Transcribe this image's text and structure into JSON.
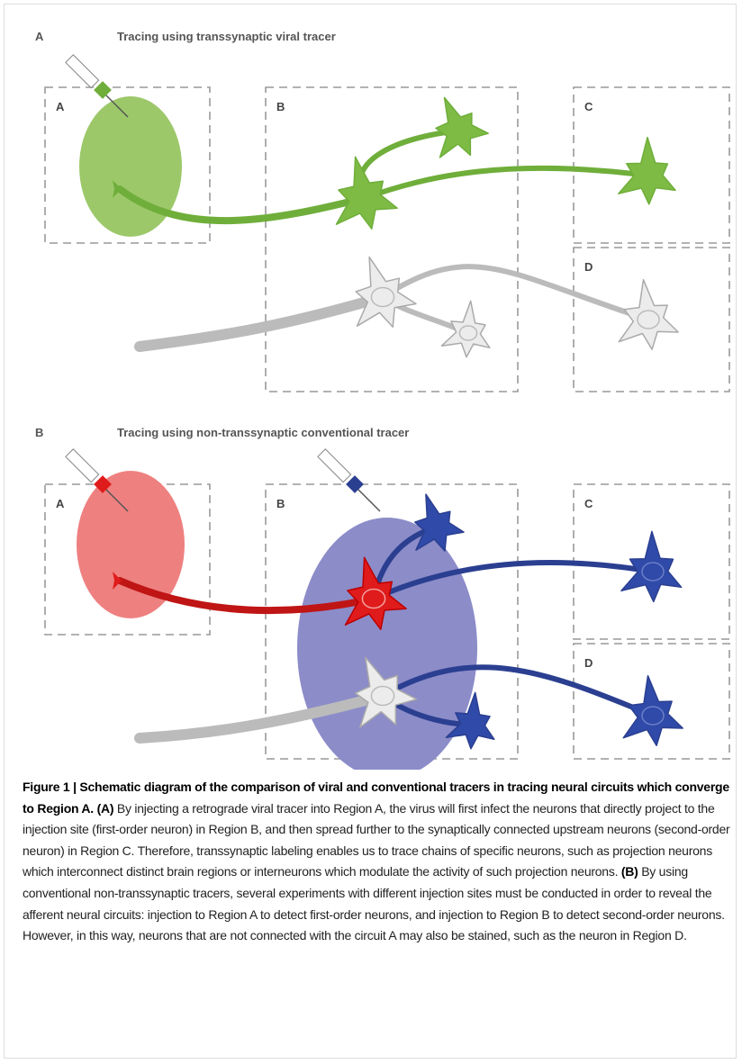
{
  "panels": [
    {
      "letter": "A",
      "title": "Tracing using transsynaptic viral tracer",
      "regions": [
        "A",
        "B",
        "C",
        "D"
      ]
    },
    {
      "letter": "B",
      "title": "Tracing using non-transsynaptic conventional tracer",
      "regions": [
        "A",
        "B",
        "C",
        "D"
      ]
    }
  ],
  "caption": {
    "title": "Figure 1 | Schematic diagram of the comparison of viral and conventional tracers in tracing neural circuits which converge to Region A.",
    "a_label": "(A)",
    "a_text": "By injecting a retrograde viral tracer into Region A, the virus will first infect the neurons that directly project to the injection site (first-order neuron) in Region B, and then spread further to the synaptically connected upstream neurons (second-order neuron) in Region C. Therefore, transsynaptic labeling enables us to trace chains of specific neurons, such as projection neurons which interconnect distinct brain regions or interneurons which modulate the activity of such projection neurons.",
    "b_label": "(B)",
    "b_text": "By using conventional non-transsynaptic tracers, several experiments with different injection sites must be conducted in order to reveal the afferent neural circuits: injection to Region A to detect first-order neurons, and injection to Region B to detect second-order neurons. However, in this way, neurons that are not connected with the circuit A may also be stained, such as the neuron in Region D."
  }
}
